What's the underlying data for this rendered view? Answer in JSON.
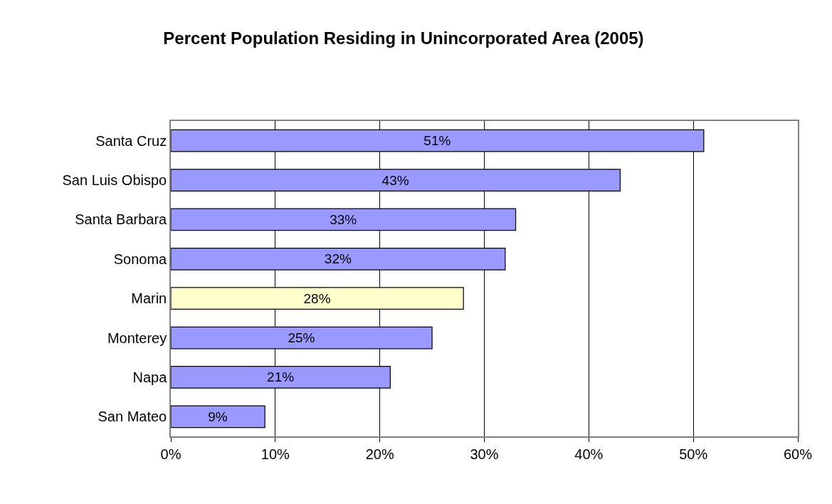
{
  "chart_data": {
    "type": "bar",
    "orientation": "horizontal",
    "title": "Percent Population Residing in Unincorporated Area (2005)",
    "categories": [
      "Santa Cruz",
      "San Luis Obispo",
      "Santa Barbara",
      "Sonoma",
      "Marin",
      "Monterey",
      "Napa",
      "San Mateo"
    ],
    "values": [
      51,
      43,
      33,
      32,
      28,
      25,
      21,
      9
    ],
    "value_labels": [
      "51%",
      "43%",
      "33%",
      "32%",
      "28%",
      "25%",
      "21%",
      "9%"
    ],
    "colors": [
      "#9999ff",
      "#9999ff",
      "#9999ff",
      "#9999ff",
      "#ffffcc",
      "#9999ff",
      "#9999ff",
      "#9999ff"
    ],
    "xlim": [
      0,
      60
    ],
    "xticks": [
      {
        "value": 0,
        "label": "0%"
      },
      {
        "value": 10,
        "label": "10%"
      },
      {
        "value": 20,
        "label": "20%"
      },
      {
        "value": 30,
        "label": "30%"
      },
      {
        "value": 40,
        "label": "40%"
      },
      {
        "value": 50,
        "label": "50%"
      },
      {
        "value": 60,
        "label": "60%"
      }
    ],
    "grid": "x"
  }
}
